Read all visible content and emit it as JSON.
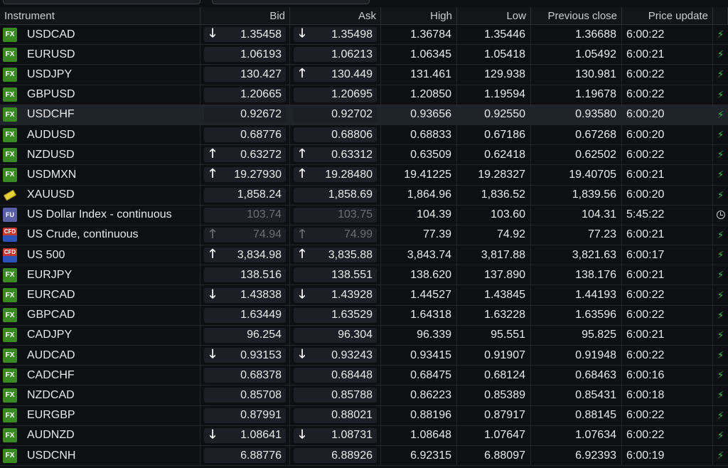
{
  "columns": {
    "instrument": "Instrument",
    "bid": "Bid",
    "ask": "Ask",
    "high": "High",
    "low": "Low",
    "prev_close": "Previous close",
    "price_update": "Price update"
  },
  "rows": [
    {
      "icon": "FX",
      "name": "USDCAD",
      "bid_dir": "down",
      "bid": "1.35458",
      "ask_dir": "down",
      "ask": "1.35498",
      "high": "1.36784",
      "low": "1.35446",
      "prev": "1.36688",
      "time": "6:00:22",
      "status": "live"
    },
    {
      "icon": "FX",
      "name": "EURUSD",
      "bid_dir": "",
      "bid": "1.06193",
      "ask_dir": "",
      "ask": "1.06213",
      "high": "1.06345",
      "low": "1.05418",
      "prev": "1.05492",
      "time": "6:00:21",
      "status": "live"
    },
    {
      "icon": "FX",
      "name": "USDJPY",
      "bid_dir": "",
      "bid": "130.427",
      "ask_dir": "up",
      "ask": "130.449",
      "high": "131.461",
      "low": "129.938",
      "prev": "130.981",
      "time": "6:00:22",
      "status": "live"
    },
    {
      "icon": "FX",
      "name": "GBPUSD",
      "bid_dir": "",
      "bid": "1.20665",
      "ask_dir": "",
      "ask": "1.20695",
      "high": "1.20850",
      "low": "1.19594",
      "prev": "1.19678",
      "time": "6:00:22",
      "status": "live"
    },
    {
      "icon": "FX",
      "name": "USDCHF",
      "bid_dir": "",
      "bid": "0.92672",
      "ask_dir": "",
      "ask": "0.92702",
      "high": "0.93656",
      "low": "0.92550",
      "prev": "0.93580",
      "time": "6:00:20",
      "status": "live",
      "selected": true
    },
    {
      "icon": "FX",
      "name": "AUDUSD",
      "bid_dir": "",
      "bid": "0.68776",
      "ask_dir": "",
      "ask": "0.68806",
      "high": "0.68833",
      "low": "0.67186",
      "prev": "0.67268",
      "time": "6:00:20",
      "status": "live"
    },
    {
      "icon": "FX",
      "name": "NZDUSD",
      "bid_dir": "up",
      "bid": "0.63272",
      "ask_dir": "up",
      "ask": "0.63312",
      "high": "0.63509",
      "low": "0.62418",
      "prev": "0.62502",
      "time": "6:00:22",
      "status": "live"
    },
    {
      "icon": "FX",
      "name": "USDMXN",
      "bid_dir": "up",
      "bid": "19.27930",
      "ask_dir": "up",
      "ask": "19.28480",
      "high": "19.41225",
      "low": "19.28327",
      "prev": "19.40705",
      "time": "6:00:21",
      "status": "live"
    },
    {
      "icon": "GOLD",
      "name": "XAUUSD",
      "bid_dir": "",
      "bid": "1,858.24",
      "ask_dir": "",
      "ask": "1,858.69",
      "high": "1,864.96",
      "low": "1,836.52",
      "prev": "1,839.56",
      "time": "6:00:20",
      "status": "live"
    },
    {
      "icon": "FU",
      "name": "US Dollar Index - continuous",
      "bid_dir": "",
      "bid": "103.74",
      "ask_dir": "",
      "ask": "103.75",
      "high": "104.39",
      "low": "103.60",
      "prev": "104.31",
      "time": "5:45:22",
      "status": "delayed",
      "dim": true
    },
    {
      "icon": "CFD",
      "name": "US Crude, continuous",
      "bid_dir": "up",
      "bid": "74.94",
      "ask_dir": "up",
      "ask": "74.99",
      "high": "77.39",
      "low": "74.92",
      "prev": "77.23",
      "time": "6:00:21",
      "status": "live",
      "dim": true
    },
    {
      "icon": "CFD",
      "name": "US 500",
      "bid_dir": "up",
      "bid": "3,834.98",
      "ask_dir": "up",
      "ask": "3,835.88",
      "high": "3,843.74",
      "low": "3,817.88",
      "prev": "3,821.63",
      "time": "6:00:17",
      "status": "live"
    },
    {
      "icon": "FX",
      "name": "EURJPY",
      "bid_dir": "",
      "bid": "138.516",
      "ask_dir": "",
      "ask": "138.551",
      "high": "138.620",
      "low": "137.890",
      "prev": "138.176",
      "time": "6:00:21",
      "status": "live"
    },
    {
      "icon": "FX",
      "name": "EURCAD",
      "bid_dir": "down",
      "bid": "1.43838",
      "ask_dir": "down",
      "ask": "1.43928",
      "high": "1.44527",
      "low": "1.43845",
      "prev": "1.44193",
      "time": "6:00:22",
      "status": "live"
    },
    {
      "icon": "FX",
      "name": "GBPCAD",
      "bid_dir": "",
      "bid": "1.63449",
      "ask_dir": "",
      "ask": "1.63529",
      "high": "1.64318",
      "low": "1.63228",
      "prev": "1.63596",
      "time": "6:00:22",
      "status": "live"
    },
    {
      "icon": "FX",
      "name": "CADJPY",
      "bid_dir": "",
      "bid": "96.254",
      "ask_dir": "",
      "ask": "96.304",
      "high": "96.339",
      "low": "95.551",
      "prev": "95.825",
      "time": "6:00:21",
      "status": "live"
    },
    {
      "icon": "FX",
      "name": "AUDCAD",
      "bid_dir": "down",
      "bid": "0.93153",
      "ask_dir": "down",
      "ask": "0.93243",
      "high": "0.93415",
      "low": "0.91907",
      "prev": "0.91948",
      "time": "6:00:22",
      "status": "live"
    },
    {
      "icon": "FX",
      "name": "CADCHF",
      "bid_dir": "",
      "bid": "0.68378",
      "ask_dir": "",
      "ask": "0.68448",
      "high": "0.68475",
      "low": "0.68124",
      "prev": "0.68463",
      "time": "6:00:16",
      "status": "live"
    },
    {
      "icon": "FX",
      "name": "NZDCAD",
      "bid_dir": "",
      "bid": "0.85708",
      "ask_dir": "",
      "ask": "0.85788",
      "high": "0.86223",
      "low": "0.85389",
      "prev": "0.85431",
      "time": "6:00:18",
      "status": "live"
    },
    {
      "icon": "FX",
      "name": "EURGBP",
      "bid_dir": "",
      "bid": "0.87991",
      "ask_dir": "",
      "ask": "0.88021",
      "high": "0.88196",
      "low": "0.87917",
      "prev": "0.88145",
      "time": "6:00:22",
      "status": "live"
    },
    {
      "icon": "FX",
      "name": "AUDNZD",
      "bid_dir": "down",
      "bid": "1.08641",
      "ask_dir": "down",
      "ask": "1.08731",
      "high": "1.08648",
      "low": "1.07647",
      "prev": "1.07634",
      "time": "6:00:22",
      "status": "live"
    },
    {
      "icon": "FX",
      "name": "USDCNH",
      "bid_dir": "",
      "bid": "6.88776",
      "ask_dir": "",
      "ask": "6.88926",
      "high": "6.92315",
      "low": "6.88097",
      "prev": "6.92393",
      "time": "6:00:19",
      "status": "live"
    }
  ],
  "colors": {
    "fx_badge": "#3a8a24",
    "live_bolt": "#39b54a",
    "quote_box": "#1c2026",
    "selected_row": "#1f242b",
    "background": "#0d0f12"
  }
}
